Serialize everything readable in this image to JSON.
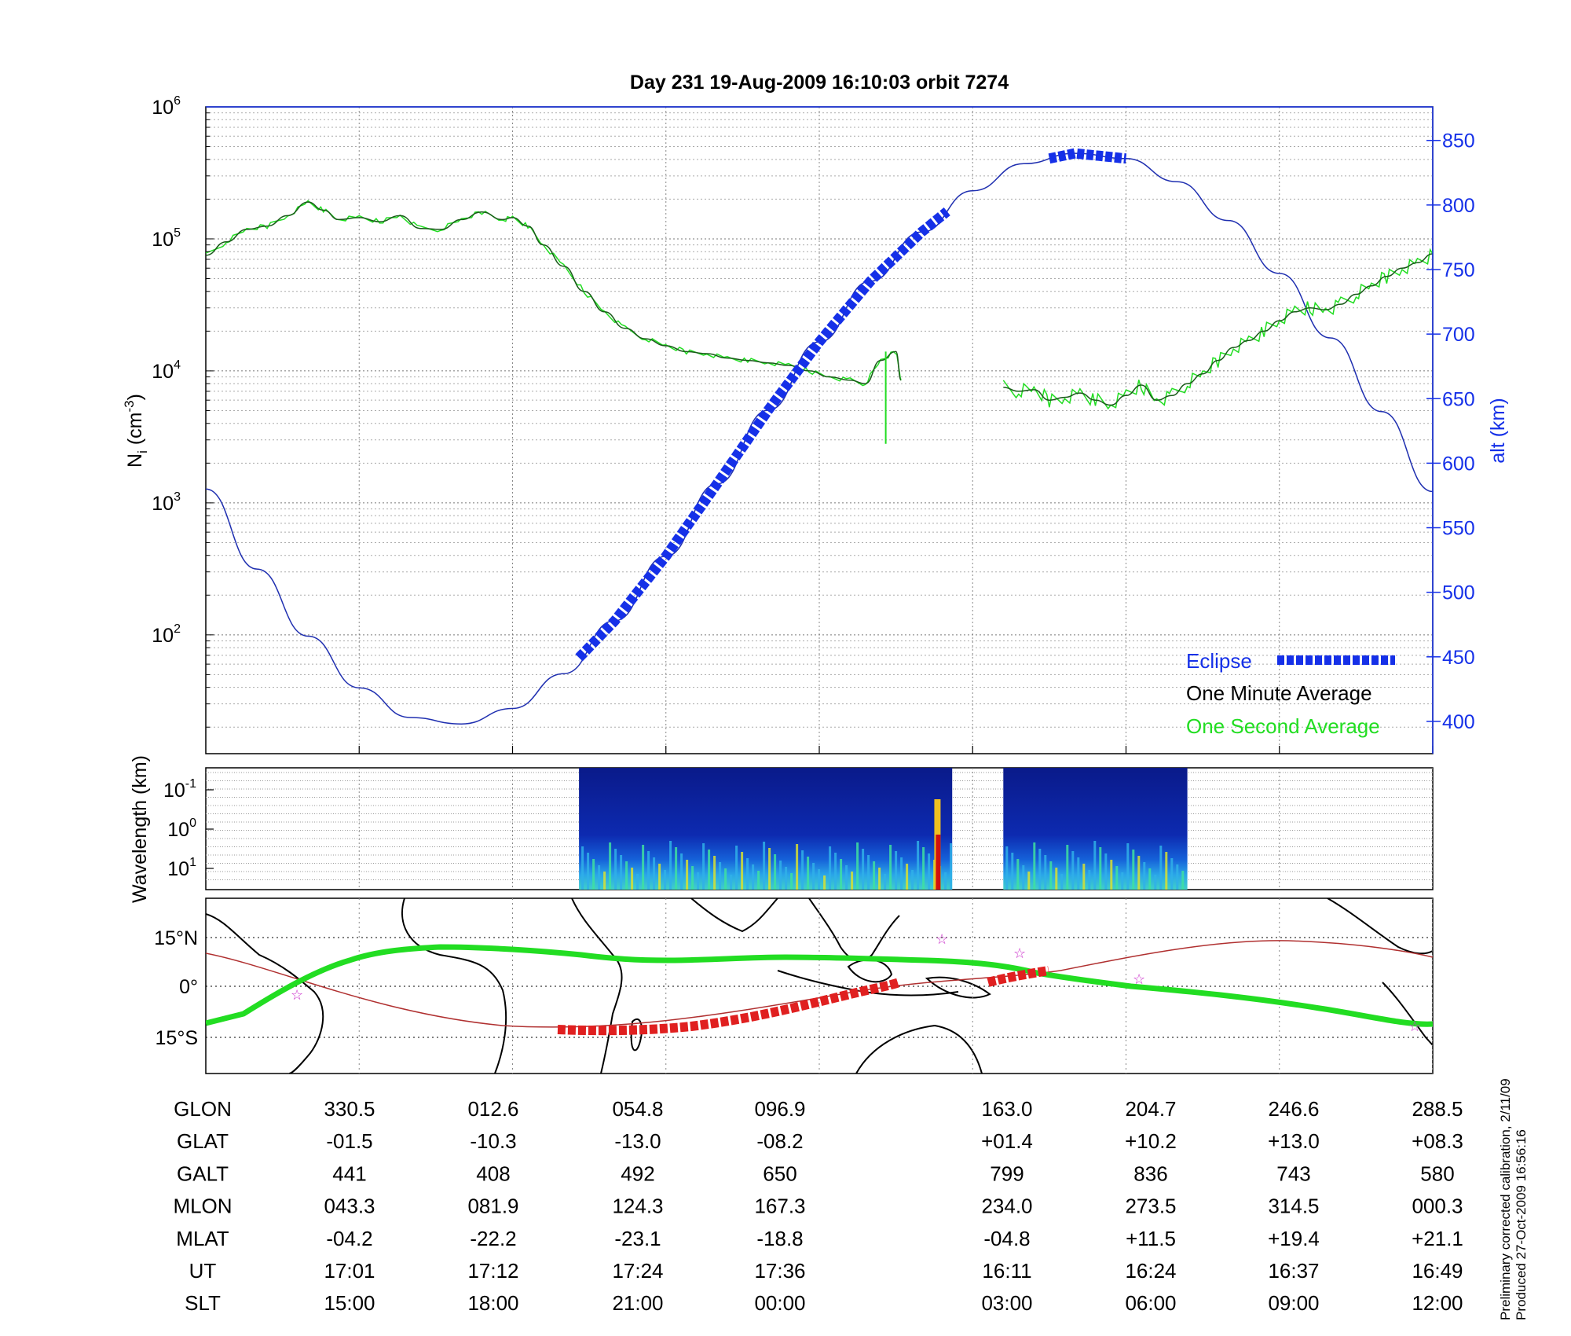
{
  "title": "Day 231  19-Aug-2009 16:10:03   orbit 7274",
  "top_panel": {
    "ylabel_left": "N",
    "ylabel_left_sub": "i",
    "ylabel_left_unit": "(cm",
    "ylabel_left_unit_sup": "-3",
    "ylabel_left_close": ")",
    "ylabel_right": "alt (km)",
    "left_ticks": [
      {
        "base": "10",
        "exp": "6",
        "value": 1000000
      },
      {
        "base": "10",
        "exp": "5",
        "value": 100000
      },
      {
        "base": "10",
        "exp": "4",
        "value": 10000
      },
      {
        "base": "10",
        "exp": "3",
        "value": 1000
      },
      {
        "base": "10",
        "exp": "2",
        "value": 100
      }
    ],
    "right_ticks": [
      "850",
      "800",
      "750",
      "700",
      "650",
      "600",
      "550",
      "500",
      "450",
      "400"
    ],
    "legend": {
      "eclipse": "Eclipse",
      "minute": "One Minute Average",
      "second": "One Second Average"
    }
  },
  "spectrogram_panel": {
    "ylabel": "Wavelength (km)",
    "ticks": [
      {
        "base": "10",
        "exp": "-1"
      },
      {
        "base": "10",
        "exp": "0"
      },
      {
        "base": "10",
        "exp": "1"
      }
    ]
  },
  "map_panel": {
    "lat_ticks": [
      "15°N",
      "0°",
      "15°S"
    ]
  },
  "table": {
    "rows": [
      {
        "label": "GLON",
        "values": [
          "330.5",
          "012.6",
          "054.8",
          "096.9",
          "163.0",
          "204.7",
          "246.6",
          "288.5"
        ]
      },
      {
        "label": "GLAT",
        "values": [
          "-01.5",
          "-10.3",
          "-13.0",
          "-08.2",
          "+01.4",
          "+10.2",
          "+13.0",
          "+08.3"
        ]
      },
      {
        "label": "GALT",
        "values": [
          "441",
          "408",
          "492",
          "650",
          "799",
          "836",
          "743",
          "580"
        ]
      },
      {
        "label": "MLON",
        "values": [
          "043.3",
          "081.9",
          "124.3",
          "167.3",
          "234.0",
          "273.5",
          "314.5",
          "000.3"
        ]
      },
      {
        "label": "MLAT",
        "values": [
          "-04.2",
          "-22.2",
          "-23.1",
          "-18.8",
          "-04.8",
          "+11.5",
          "+19.4",
          "+21.1"
        ]
      },
      {
        "label": "UT",
        "values": [
          "17:01",
          "17:12",
          "17:24",
          "17:36",
          "16:11",
          "16:24",
          "16:37",
          "16:49"
        ]
      },
      {
        "label": "SLT",
        "values": [
          "15:00",
          "18:00",
          "21:00",
          "00:00",
          "03:00",
          "06:00",
          "09:00",
          "12:00"
        ]
      }
    ]
  },
  "side_note": {
    "line1": "Preliminary corrected calibration, 2/11/09",
    "line2": "Produced 27-Oct-2009 16:56:16"
  },
  "colors": {
    "altitude": "#1f2fb0",
    "eclipse": "#1530e8",
    "minute_avg": "#1a5a1a",
    "second_avg": "#22dd22",
    "ground_track": "#22dd22",
    "magnetic_equator": "#b03030",
    "eclipse_track": "#e02020",
    "right_axis": "#1530e8"
  },
  "chart_data": {
    "type": "line",
    "title": "Day 231  19-Aug-2009 16:10:03   orbit 7274",
    "xlabel": "",
    "x_ticks": {
      "GLON": [
        "330.5",
        "012.6",
        "054.8",
        "096.9",
        "163.0",
        "204.7",
        "246.6",
        "288.5"
      ],
      "SLT": [
        "15:00",
        "18:00",
        "21:00",
        "00:00",
        "03:00",
        "06:00",
        "09:00",
        "12:00"
      ]
    },
    "slt_hours": [
      15,
      18,
      21,
      24,
      27,
      30,
      33,
      36
    ],
    "ylabel_left": "Ni (cm-3)",
    "ylim_left_log10": [
      1.1,
      6
    ],
    "ylabel_right": "alt (km)",
    "ylim_right": [
      375,
      876
    ],
    "yscale_left": "log",
    "grid": true,
    "legend_position": "bottom-right",
    "series": [
      {
        "name": "One Minute Average",
        "x_slt": [
          12.0,
          12.4,
          12.8,
          13.2,
          13.6,
          14.0,
          14.3,
          14.6,
          15.0,
          15.4,
          15.8,
          16.2,
          16.6,
          17.0,
          17.4,
          17.8,
          18.0,
          18.3,
          18.6,
          19.0,
          19.4,
          19.8,
          20.2,
          20.6,
          21.0,
          21.4,
          21.8,
          22.2,
          22.6,
          23.0,
          23.4,
          23.8,
          24.2,
          24.6,
          24.9,
          25.2,
          25.5,
          25.6
        ],
        "y": [
          75000,
          95000,
          118000,
          125000,
          150000,
          190000,
          165000,
          140000,
          145000,
          135000,
          150000,
          120000,
          118000,
          140000,
          160000,
          140000,
          145000,
          125000,
          90000,
          62000,
          40000,
          28000,
          21000,
          17500,
          15500,
          14000,
          13500,
          12500,
          12000,
          11500,
          11000,
          10000,
          9000,
          8500,
          8000,
          12000,
          14000,
          8500
        ]
      },
      {
        "name": "One Minute Average (segment 2)",
        "x_slt": [
          27.6,
          27.9,
          28.2,
          28.5,
          28.8,
          29.1,
          29.4,
          29.7,
          30.0,
          30.3,
          30.6,
          30.9,
          31.2,
          31.5,
          31.8,
          32.1,
          32.4,
          32.7,
          33.0,
          33.3,
          33.6,
          33.9,
          34.2,
          34.5,
          34.8,
          35.1,
          35.4,
          35.7,
          36.0
        ],
        "y": [
          7500,
          7000,
          7200,
          6000,
          6300,
          6800,
          6000,
          5500,
          6500,
          7800,
          6000,
          6500,
          8000,
          9500,
          12000,
          15000,
          17000,
          20000,
          24000,
          28000,
          30000,
          29000,
          32000,
          38000,
          44000,
          52000,
          60000,
          66000,
          77000
        ]
      },
      {
        "name": "alt (km)",
        "x_slt": [
          12,
          13,
          14,
          15,
          16,
          17,
          18,
          19,
          20,
          21,
          22,
          23,
          24,
          25,
          26,
          27,
          28,
          29,
          30,
          31,
          32,
          33,
          34,
          35,
          36
        ],
        "y": [
          580,
          518,
          466,
          426,
          403,
          398,
          410,
          437,
          478,
          528,
          584,
          641,
          694,
          741,
          779,
          811,
          832,
          840,
          836,
          818,
          788,
          747,
          697,
          640,
          578
        ]
      }
    ],
    "eclipse_segments": [
      {
        "x_slt_start": 19.3,
        "x_slt_end": 26.5
      },
      {
        "x_slt_start": 28.5,
        "x_slt_end": 30.0
      }
    ]
  }
}
